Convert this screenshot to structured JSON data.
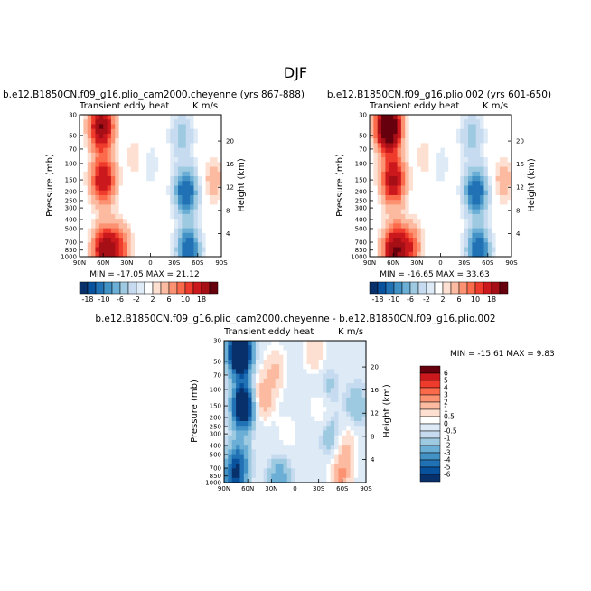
{
  "figure": {
    "title": "DJF"
  },
  "colors": {
    "main_scale": [
      "#08306b",
      "#08519c",
      "#2171b5",
      "#4292c6",
      "#6baed6",
      "#9ecae1",
      "#c6dbef",
      "#deebf7",
      "#ffffff",
      "#fee0d2",
      "#fcbba1",
      "#fc9272",
      "#fb6a4a",
      "#ef3b2c",
      "#cb181d",
      "#a50f15",
      "#67000d"
    ],
    "diff_scale": [
      "#08306b",
      "#08519c",
      "#2171b5",
      "#4292c6",
      "#6baed6",
      "#9ecae1",
      "#c6dbef",
      "#deebf7",
      "#ffffff",
      "#fee0d2",
      "#fcbba1",
      "#fc9272",
      "#fb6a4a",
      "#ef3b2c",
      "#cb181d",
      "#67000d"
    ]
  },
  "chart_data": [
    {
      "type": "heatmap",
      "title": "b.e12.B1850CN.f09_g16.plio_cam2000.cheyenne (yrs 867-888)",
      "left_label": "Transient eddy heat",
      "right_label": "K m/s",
      "min_max_text": "MIN = -17.05   MAX =  21.12",
      "min": -17.05,
      "max": 21.12,
      "xlabel": "",
      "ylabel": "Pressure (mb)",
      "y2label": "Height (km)",
      "x_ticks": [
        "90N",
        "60N",
        "30N",
        "0",
        "30S",
        "60S",
        "90S"
      ],
      "y_ticks": [
        "30",
        "50",
        "70",
        "100",
        "150",
        "200",
        "250",
        "300",
        "400",
        "500",
        "700",
        "850",
        "1000"
      ],
      "y2_ticks": [
        "4",
        "8",
        "12",
        "16",
        "20"
      ],
      "y_scale": "log",
      "ylim": [
        1000,
        30
      ],
      "xlim": [
        90,
        -90
      ],
      "features": [
        {
          "lat": 62,
          "p": 40,
          "value": 18
        },
        {
          "lat": 60,
          "p": 150,
          "value": 14
        },
        {
          "lat": 58,
          "p": 850,
          "value": 16
        },
        {
          "lat": 40,
          "p": 800,
          "value": 8
        },
        {
          "lat": 15,
          "p": 90,
          "value": 3
        },
        {
          "lat": 5,
          "p": 100,
          "value": -3
        },
        {
          "lat": -45,
          "p": 200,
          "value": -14
        },
        {
          "lat": -48,
          "p": 850,
          "value": -14
        },
        {
          "lat": -40,
          "p": 50,
          "value": -5
        },
        {
          "lat": -80,
          "p": 150,
          "value": 3
        }
      ]
    },
    {
      "type": "heatmap",
      "title": "b.e12.B1850CN.f09_g16.plio.002 (yrs 601-650)",
      "left_label": "Transient eddy heat",
      "right_label": "K m/s",
      "min_max_text": "MIN = -16.65   MAX =  33.63",
      "min": -16.65,
      "max": 33.63,
      "xlabel": "",
      "ylabel": "Pressure (mb)",
      "y2label": "Height (km)",
      "x_ticks": [
        "90N",
        "60N",
        "30N",
        "0",
        "30S",
        "60S",
        "90S"
      ],
      "y_ticks": [
        "30",
        "50",
        "70",
        "100",
        "150",
        "200",
        "250",
        "300",
        "400",
        "500",
        "700",
        "850",
        "1000"
      ],
      "y2_ticks": [
        "4",
        "8",
        "12",
        "16",
        "20"
      ],
      "y_scale": "log",
      "ylim": [
        1000,
        30
      ],
      "xlim": [
        90,
        -90
      ],
      "features": [
        {
          "lat": 66,
          "p": 40,
          "value": 30
        },
        {
          "lat": 60,
          "p": 150,
          "value": 15
        },
        {
          "lat": 58,
          "p": 850,
          "value": 17
        },
        {
          "lat": 40,
          "p": 800,
          "value": 9
        },
        {
          "lat": 15,
          "p": 90,
          "value": 3
        },
        {
          "lat": 5,
          "p": 100,
          "value": -3
        },
        {
          "lat": -45,
          "p": 200,
          "value": -14
        },
        {
          "lat": -48,
          "p": 850,
          "value": -14
        },
        {
          "lat": -40,
          "p": 50,
          "value": -5
        },
        {
          "lat": -80,
          "p": 150,
          "value": 3
        }
      ]
    },
    {
      "type": "heatmap",
      "title": "b.e12.B1850CN.f09_g16.plio_cam2000.cheyenne - b.e12.B1850CN.f09_g16.plio.002",
      "left_label": "Transient eddy heat",
      "right_label": "K m/s",
      "min_max_text": "MIN = -15.61   MAX =   9.83",
      "min": -15.61,
      "max": 9.83,
      "xlabel": "",
      "ylabel": "Pressure (mb)",
      "y2label": "Height (km)",
      "x_ticks": [
        "90N",
        "60N",
        "30N",
        "0",
        "30S",
        "60S",
        "90S"
      ],
      "y_ticks": [
        "30",
        "50",
        "70",
        "100",
        "150",
        "200",
        "250",
        "300",
        "400",
        "500",
        "700",
        "850",
        "1000"
      ],
      "y2_ticks": [
        "4",
        "8",
        "12",
        "16",
        "20"
      ],
      "y_scale": "log",
      "ylim": [
        1000,
        30
      ],
      "xlim": [
        90,
        -90
      ],
      "features": [
        {
          "lat": 70,
          "p": 40,
          "value": -12
        },
        {
          "lat": 66,
          "p": 150,
          "value": -9
        },
        {
          "lat": 72,
          "p": 600,
          "value": -4
        },
        {
          "lat": 78,
          "p": 950,
          "value": -4
        },
        {
          "lat": 40,
          "p": 120,
          "value": 3
        },
        {
          "lat": 25,
          "p": 60,
          "value": 2
        },
        {
          "lat": 10,
          "p": 300,
          "value": 1
        },
        {
          "lat": -25,
          "p": 40,
          "value": 2
        },
        {
          "lat": -35,
          "p": 150,
          "value": 2
        },
        {
          "lat": -40,
          "p": 100,
          "value": -2
        },
        {
          "lat": -45,
          "p": 300,
          "value": -2
        },
        {
          "lat": -58,
          "p": 850,
          "value": 3
        },
        {
          "lat": -78,
          "p": 150,
          "value": -2
        },
        {
          "lat": -65,
          "p": 400,
          "value": 2
        },
        {
          "lat": 20,
          "p": 900,
          "value": -3
        }
      ]
    }
  ],
  "colorbars": {
    "main": {
      "labels": [
        "-18",
        "-10",
        "-6",
        "-2",
        "2",
        "6",
        "10",
        "18"
      ]
    },
    "diff": {
      "labels": [
        "6",
        "5",
        "4",
        "3",
        "2",
        "1",
        "0.5",
        "0",
        "-0.5",
        "-1",
        "-2",
        "-3",
        "-4",
        "-5",
        "-6"
      ]
    }
  }
}
